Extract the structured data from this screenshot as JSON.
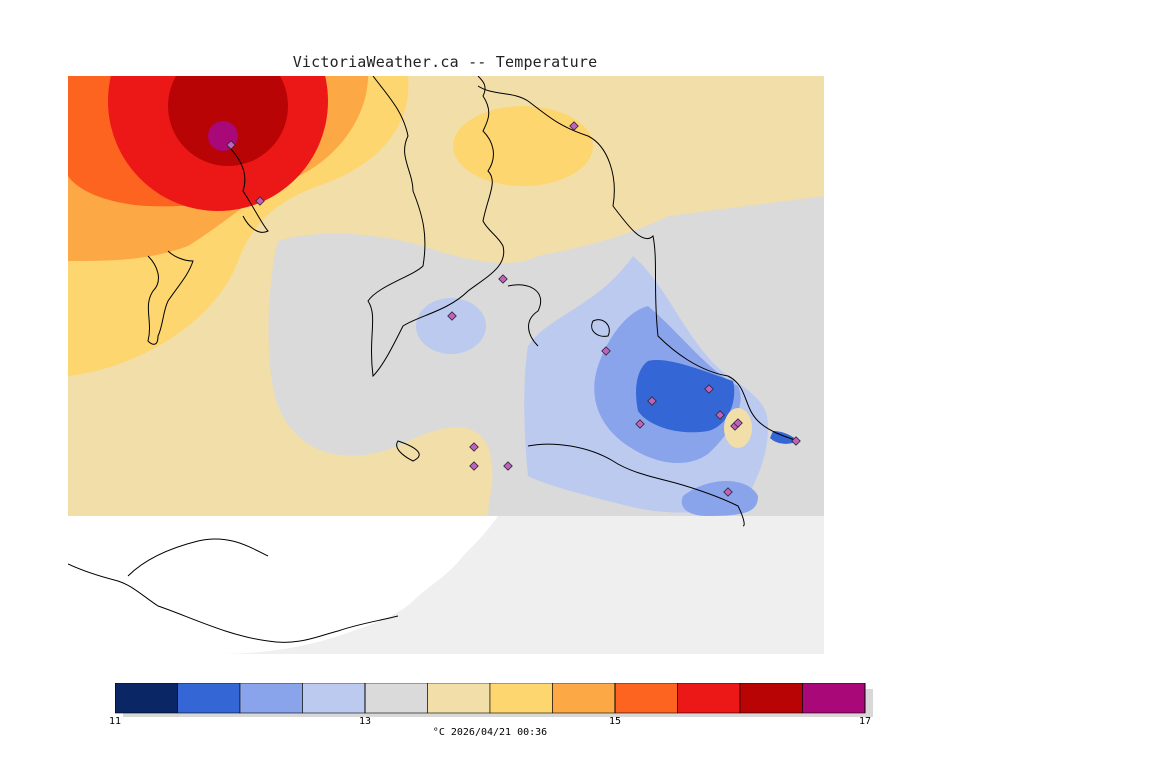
{
  "title": "VictoriaWeather.ca -- Temperature",
  "colors": {
    "background": "#ffffff",
    "no_data_land": "#ffffff",
    "water_no_data": "#efefef",
    "coast": "#000000",
    "station_marker": "#c060c0"
  },
  "legend": {
    "min": 11,
    "max": 17,
    "step": 0.5,
    "tick_labels": [
      "11",
      "13",
      "15",
      "17"
    ],
    "tick_values": [
      11,
      13,
      15,
      17
    ],
    "bins": [
      {
        "from": 11.0,
        "to": 11.5,
        "color": "#0a2665"
      },
      {
        "from": 11.5,
        "to": 12.0,
        "color": "#3466d6"
      },
      {
        "from": 12.0,
        "to": 12.5,
        "color": "#8aa4ec"
      },
      {
        "from": 12.5,
        "to": 13.0,
        "color": "#bccaf0"
      },
      {
        "from": 13.0,
        "to": 13.5,
        "color": "#dadada"
      },
      {
        "from": 13.5,
        "to": 14.0,
        "color": "#f2dea8"
      },
      {
        "from": 14.0,
        "to": 14.5,
        "color": "#fdd670"
      },
      {
        "from": 14.5,
        "to": 15.0,
        "color": "#fca844"
      },
      {
        "from": 15.0,
        "to": 15.5,
        "color": "#fc6420"
      },
      {
        "from": 15.5,
        "to": 16.0,
        "color": "#ec1818"
      },
      {
        "from": 16.0,
        "to": 16.5,
        "color": "#b80404"
      },
      {
        "from": 16.5,
        "to": 17.0,
        "color": "#a80878"
      }
    ],
    "caption": "°C  2026/04/21 00:36"
  },
  "stations_count": 17
}
